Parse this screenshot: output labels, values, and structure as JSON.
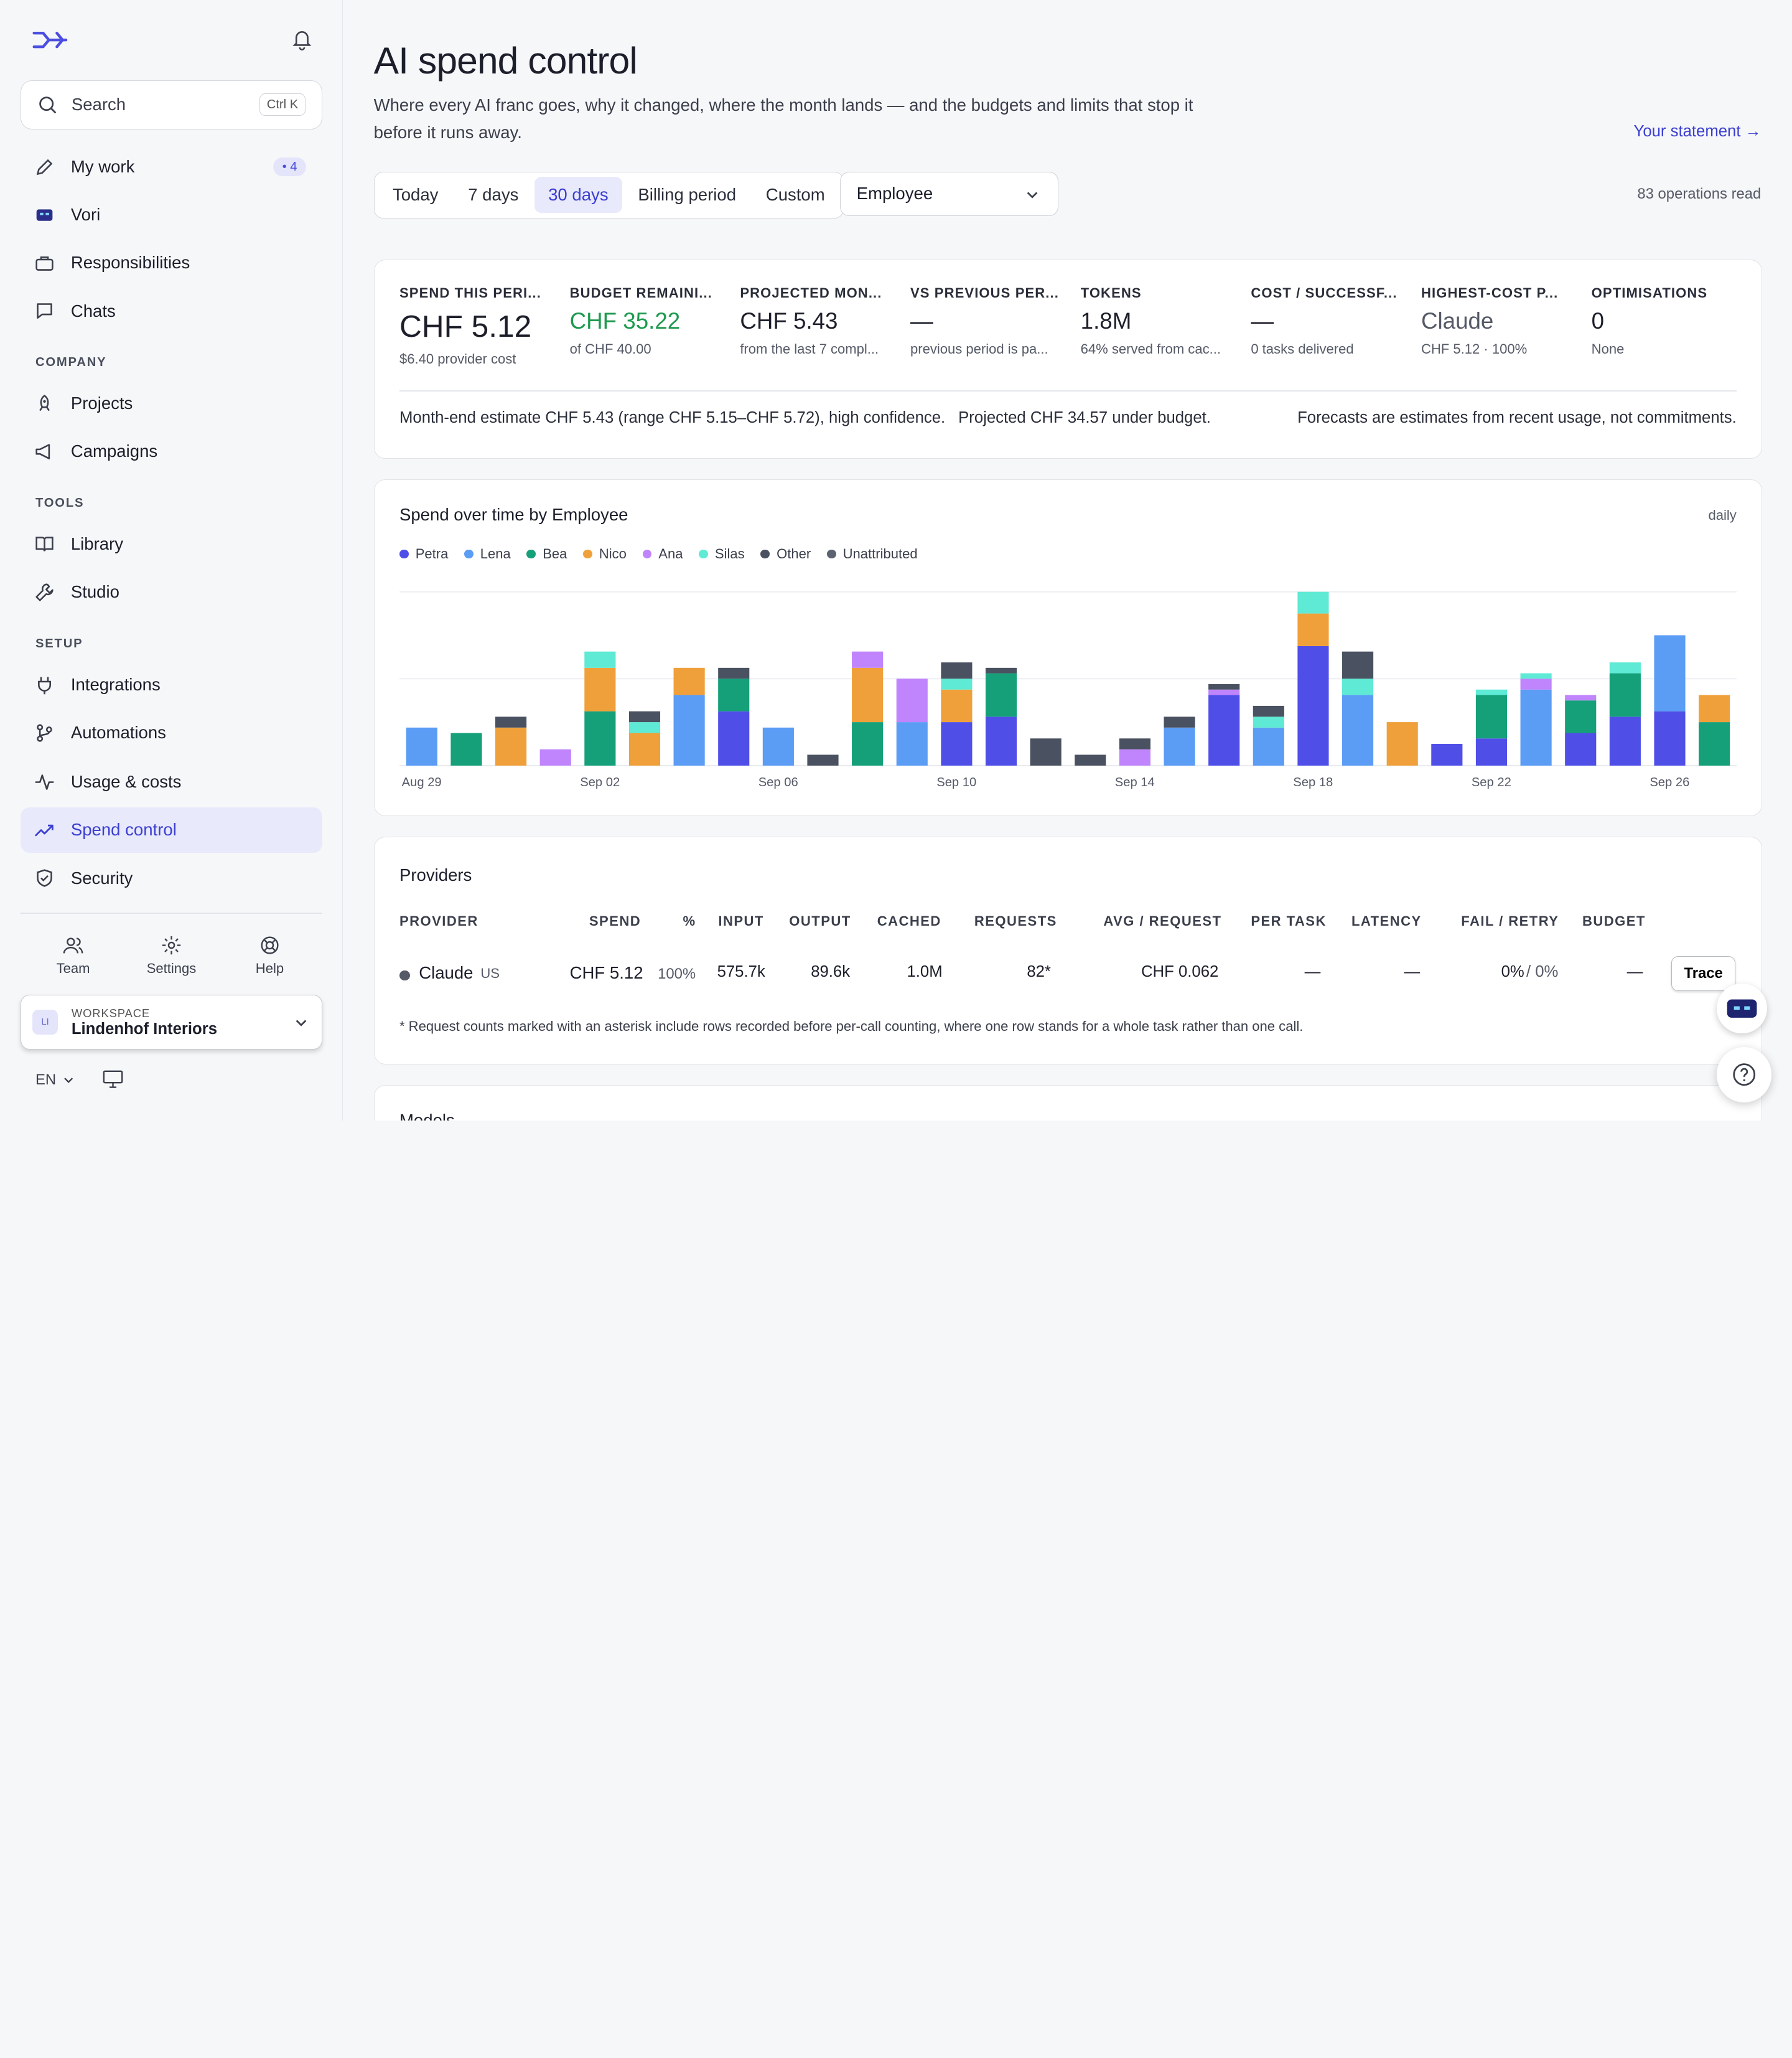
{
  "sidebar": {
    "search": {
      "label": "Search",
      "shortcut": "Ctrl K"
    },
    "nav": [
      {
        "label": "My work",
        "badge": "• 4",
        "icon": "pencil-icon"
      },
      {
        "label": "Vori",
        "icon": "robot-icon"
      },
      {
        "label": "Responsibilities",
        "icon": "briefcase-icon"
      },
      {
        "label": "Chats",
        "icon": "chat-icon"
      }
    ],
    "section_company": "COMPANY",
    "company": [
      {
        "label": "Projects",
        "icon": "rocket-icon"
      },
      {
        "label": "Campaigns",
        "icon": "megaphone-icon"
      }
    ],
    "section_tools": "TOOLS",
    "tools": [
      {
        "label": "Library",
        "icon": "book-icon"
      },
      {
        "label": "Studio",
        "icon": "wrench-icon"
      }
    ],
    "section_setup": "SETUP",
    "setup": [
      {
        "label": "Integrations",
        "icon": "plug-icon"
      },
      {
        "label": "Automations",
        "icon": "branch-icon"
      },
      {
        "label": "Usage & costs",
        "icon": "activity-icon"
      },
      {
        "label": "Spend control",
        "icon": "trend-icon",
        "active": true
      },
      {
        "label": "Security",
        "icon": "shield-icon"
      }
    ],
    "footer": {
      "team": "Team",
      "settings": "Settings",
      "help": "Help"
    },
    "workspace": {
      "initials": "LI",
      "label": "WORKSPACE",
      "name": "Lindenhof Interiors"
    },
    "language": "EN"
  },
  "header": {
    "title": "AI spend control",
    "subtitle": "Where every AI franc goes, why it changed, where the month lands — and the budgets and limits that stop it before it runs away.",
    "statement_link": "Your statement →",
    "ranges": [
      "Today",
      "7 days",
      "30 days",
      "Billing period",
      "Custom"
    ],
    "selected_range": "30 days",
    "group_by": "Employee",
    "operations": "83 operations read"
  },
  "kpis": [
    {
      "label": "SPEND THIS PERI...",
      "value": "CHF 5.12",
      "note": "$6.40 provider cost"
    },
    {
      "label": "BUDGET REMAINI...",
      "value": "CHF 35.22",
      "note": "of CHF 40.00"
    },
    {
      "label": "PROJECTED MON...",
      "value": "CHF 5.43",
      "note": "from the last 7 compl..."
    },
    {
      "label": "VS PREVIOUS PER...",
      "value": "—",
      "note": "previous period is pa..."
    },
    {
      "label": "TOKENS",
      "value": "1.8M",
      "note": "64% served from cac..."
    },
    {
      "label": "COST / SUCCESSF...",
      "value": "—",
      "note": "0 tasks delivered"
    },
    {
      "label": "HIGHEST-COST P...",
      "value": "Claude",
      "note": "CHF 5.12 · 100%"
    },
    {
      "label": "OPTIMISATIONS",
      "value": "0",
      "note": "None"
    }
  ],
  "forecast": {
    "estimate": "Month-end estimate CHF 5.43 (range CHF 5.15–CHF 5.72), high confidence.",
    "projection": "Projected CHF 34.57 under budget.",
    "disclaimer": "Forecasts are estimates from recent usage, not commitments."
  },
  "chart_data": {
    "type": "bar",
    "stacked": true,
    "title": "Spend over time by Employee",
    "granularity": "daily",
    "ylim": [
      0,
      0.32
    ],
    "grid": true,
    "legend_position": "top-left",
    "tick_labels": [
      "Aug 29",
      "Sep 02",
      "Sep 06",
      "Sep 10",
      "Sep 14",
      "Sep 18",
      "Sep 22",
      "Sep 26"
    ],
    "categories": [
      "Aug 29",
      "Aug 30",
      "Aug 31",
      "Sep 01",
      "Sep 02",
      "Sep 03",
      "Sep 04",
      "Sep 05",
      "Sep 06",
      "Sep 07",
      "Sep 08",
      "Sep 09",
      "Sep 10",
      "Sep 11",
      "Sep 12",
      "Sep 13",
      "Sep 14",
      "Sep 15",
      "Sep 16",
      "Sep 17",
      "Sep 18",
      "Sep 19",
      "Sep 20",
      "Sep 21",
      "Sep 22",
      "Sep 23",
      "Sep 24",
      "Sep 25",
      "Sep 26",
      "Sep 27"
    ],
    "series": [
      {
        "name": "Petra",
        "color": "#4f4fe8",
        "values": [
          0,
          0,
          0,
          0,
          0,
          0,
          0,
          0.1,
          0,
          0,
          0,
          0,
          0.08,
          0.09,
          0,
          0,
          0,
          0,
          0.13,
          0,
          0.22,
          0,
          0,
          0.04,
          0.05,
          0,
          0.06,
          0.09,
          0.1,
          0
        ]
      },
      {
        "name": "Lena",
        "color": "#5b9cf5",
        "values": [
          0.07,
          0,
          0,
          0,
          0,
          0,
          0.13,
          0,
          0.07,
          0,
          0,
          0.08,
          0,
          0,
          0,
          0,
          0,
          0.07,
          0,
          0.07,
          0,
          0.13,
          0,
          0,
          0,
          0.14,
          0,
          0,
          0.14,
          0
        ]
      },
      {
        "name": "Bea",
        "color": "#15a07a",
        "values": [
          0,
          0.06,
          0,
          0,
          0.1,
          0,
          0,
          0.06,
          0,
          0,
          0.08,
          0,
          0,
          0.08,
          0,
          0,
          0,
          0,
          0,
          0,
          0,
          0,
          0,
          0,
          0.08,
          0,
          0.06,
          0.08,
          0,
          0.08
        ]
      },
      {
        "name": "Nico",
        "color": "#f0a03a",
        "values": [
          0,
          0,
          0.07,
          0,
          0.08,
          0.06,
          0.05,
          0,
          0,
          0,
          0.1,
          0,
          0.06,
          0,
          0,
          0,
          0,
          0,
          0,
          0,
          0.06,
          0,
          0.08,
          0,
          0,
          0,
          0,
          0,
          0,
          0.05
        ]
      },
      {
        "name": "Ana",
        "color": "#c084fc",
        "values": [
          0,
          0,
          0,
          0.03,
          0,
          0,
          0,
          0,
          0,
          0,
          0.03,
          0.08,
          0,
          0,
          0,
          0,
          0.03,
          0,
          0.01,
          0,
          0,
          0,
          0,
          0,
          0,
          0.02,
          0.01,
          0,
          0,
          0
        ]
      },
      {
        "name": "Silas",
        "color": "#5eead4",
        "values": [
          0,
          0,
          0,
          0,
          0.03,
          0.02,
          0,
          0,
          0,
          0,
          0,
          0,
          0.02,
          0,
          0,
          0,
          0,
          0,
          0,
          0.02,
          0.04,
          0.03,
          0,
          0,
          0.01,
          0.01,
          0,
          0.02,
          0,
          0
        ]
      },
      {
        "name": "Other",
        "color": "#4a5261",
        "values": [
          0,
          0,
          0.02,
          0,
          0,
          0.02,
          0,
          0.02,
          0,
          0.02,
          0,
          0,
          0.03,
          0.01,
          0.05,
          0.02,
          0.02,
          0.02,
          0.01,
          0.02,
          0,
          0.05,
          0,
          0,
          0,
          0,
          0,
          0,
          0,
          0
        ]
      },
      {
        "name": "Unattributed",
        "color": "#5c6370",
        "values": [
          0,
          0,
          0,
          0,
          0,
          0,
          0,
          0,
          0,
          0,
          0,
          0,
          0,
          0,
          0,
          0,
          0,
          0,
          0,
          0,
          0,
          0,
          0,
          0,
          0,
          0,
          0,
          0,
          0,
          0
        ]
      }
    ]
  },
  "providers": {
    "title": "Providers",
    "headers": [
      "PROVIDER",
      "SPEND",
      "%",
      "INPUT",
      "OUTPUT",
      "CACHED",
      "REQUESTS",
      "AVG / REQUEST",
      "PER TASK",
      "LATENCY",
      "FAIL / RETRY",
      "BUDGET"
    ],
    "row": {
      "provider": "Claude",
      "region": "US",
      "spend": "CHF 5.12",
      "pct": "100%",
      "input": "575.7k",
      "output": "89.6k",
      "cached": "1.0M",
      "requests": "82*",
      "avg": "CHF 0.062",
      "per_task": "—",
      "latency": "—",
      "fail": "0%",
      "retry": "/ 0%",
      "budget": "—",
      "action": "Trace"
    },
    "footnote": "* Request counts marked with an asterisk include rows recorded before per-call counting, where one row stands for a whole task rather than one call."
  },
  "models": {
    "title": "Models"
  }
}
